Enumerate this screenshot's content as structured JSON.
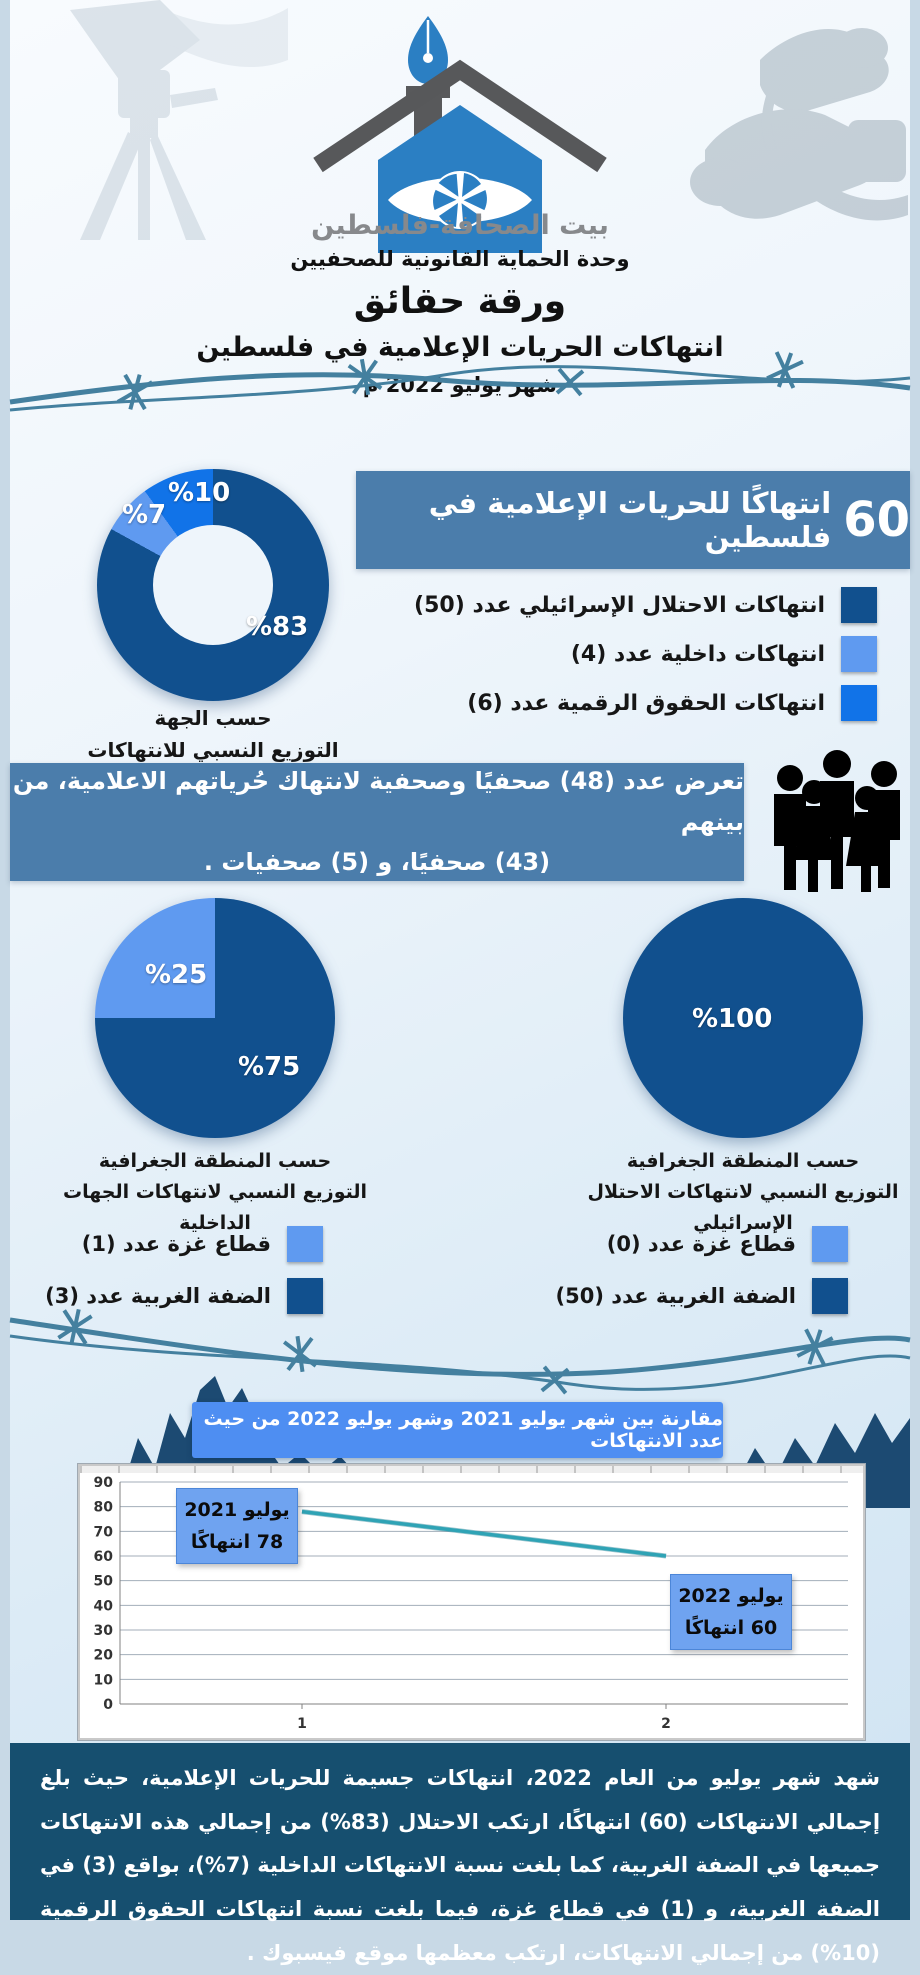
{
  "colors": {
    "dark_blue": "#11508e",
    "light_blue": "#5f9af0",
    "bright_blue": "#1173e8",
    "steel_banner": "#4b7dab",
    "compare_banner": "#4e8ef2",
    "annotation_box": "#6fa3f0",
    "mountains_navy": "#1c4a72",
    "footer_bg": "#164f6f",
    "wire": "#44809f",
    "line": "#2fa3b5"
  },
  "header": {
    "brand": "بيت الصحافة-فلسطين",
    "unit": "وحدة الحماية القانونية للصحفيين",
    "doc_type": "ورقة حقائق",
    "title": "انتهاكات الحريات الإعلامية في فلسطين",
    "period": "شهر يوليو 2022 م"
  },
  "overview": {
    "stat_number": "60",
    "stat_text": "انتهاكًا للحريات الإعلامية في فلسطين",
    "donut_caption_line1": "حسب الجهة",
    "donut_caption_line2": "التوزيع النسبي للانتهاكات",
    "donut_labels": {
      "israeli": "%83",
      "internal": "%7",
      "digital": "%10"
    },
    "legend": [
      {
        "label": "انتهاكات الاحتلال الإسرائيلي عدد (50)",
        "color": "#11508e"
      },
      {
        "label": "انتهاكات داخلية عدد (4)",
        "color": "#5f9af0"
      },
      {
        "label": "انتهاكات الحقوق الرقمية عدد (6)",
        "color": "#1173e8"
      }
    ]
  },
  "journalists_banner": {
    "line1": "تعرض عدد (48) صحفيًا وصحفية لانتهاك حُرياتهم الاعلامية، من بينهم",
    "line2": "(43) صحفيًا، و (5) صحفيات ."
  },
  "geo_internal": {
    "caption_line1": "حسب المنطقة الجغرافية",
    "caption_line2": "التوزيع النسبي لانتهاكات الجهات الداخلية",
    "labels": {
      "west_bank": "%75",
      "gaza": "%25"
    },
    "legend": [
      {
        "label": "قطاع غزة عدد (1)",
        "color": "#5f9af0"
      },
      {
        "label": "الضفة الغربية عدد (3)",
        "color": "#11508e"
      }
    ]
  },
  "geo_israeli": {
    "caption_line1": "حسب المنطقة الجغرافية",
    "caption_line2": "التوزيع النسبي لانتهاكات الاحتلال الإسرائيلي",
    "labels": {
      "total": "%100"
    },
    "legend": [
      {
        "label": "قطاع غزة عدد (0)",
        "color": "#5f9af0"
      },
      {
        "label": "الضفة الغربية عدد (50)",
        "color": "#11508e"
      }
    ]
  },
  "comparison": {
    "banner": "مقارنة بين شهر يوليو 2021 وشهر يوليو 2022 من حيث عدد الانتهاكات",
    "label_2021_line1": "يوليو 2021",
    "label_2021_line2": "78 انتهاكًا",
    "label_2022_line1": "يوليو 2022",
    "label_2022_line2": "60 انتهاكًا"
  },
  "footer": {
    "paragraph": "شهد شهر يوليو من العام 2022، انتهاكات جسيمة للحريات الإعلامية، حيث بلغ إجمالي الانتهاكات (60) انتهاكًا، ارتكب الاحتلال (83%) من إجمالي هذه الانتهاكات جميعها في الضفة الغربية، كما بلغت نسبة الانتهاكات الداخلية (7%)، بواقع (3) في الضفة الغربية، و (1) في قطاع غزة، فيما بلغت نسبة انتهاكات الحقوق الرقمية (10%) من إجمالي الانتهاكات، ارتكب معظمها موقع فيسبوك ."
  },
  "chart_data": [
    {
      "type": "donut",
      "title": "التوزيع النسبي للانتهاكات حسب الجهة",
      "labels": [
        "انتهاكات الاحتلال الإسرائيلي",
        "انتهاكات داخلية",
        "انتهاكات الحقوق الرقمية"
      ],
      "values": [
        83,
        7,
        10
      ],
      "counts": [
        50,
        4,
        6
      ],
      "colors": [
        "#11508e",
        "#5f9af0",
        "#1173e8"
      ],
      "value_format": "percent"
    },
    {
      "type": "pie",
      "title": "التوزيع النسبي لانتهاكات الجهات الداخلية حسب المنطقة الجغرافية",
      "labels": [
        "الضفة الغربية",
        "قطاع غزة"
      ],
      "values": [
        75,
        25
      ],
      "counts": [
        3,
        1
      ],
      "colors": [
        "#11508e",
        "#5f9af0"
      ],
      "value_format": "percent"
    },
    {
      "type": "pie",
      "title": "التوزيع النسبي لانتهاكات الاحتلال الإسرائيلي حسب المنطقة الجغرافية",
      "labels": [
        "الضفة الغربية",
        "قطاع غزة"
      ],
      "values": [
        100,
        0
      ],
      "counts": [
        50,
        0
      ],
      "colors": [
        "#11508e",
        "#5f9af0"
      ],
      "value_format": "percent"
    },
    {
      "type": "line",
      "title": "مقارنة بين شهر يوليو 2021 وشهر يوليو 2022 من حيث عدد الانتهاكات",
      "x": [
        1,
        2
      ],
      "series": [
        {
          "name": "عدد الانتهاكات",
          "values": [
            78,
            60
          ]
        }
      ],
      "ylim": [
        0,
        90
      ],
      "ytick_step": 10,
      "grid": true,
      "annotations": [
        "يوليو 2021: 78 انتهاكًا",
        "يوليو 2022: 60 انتهاكًا"
      ]
    }
  ]
}
